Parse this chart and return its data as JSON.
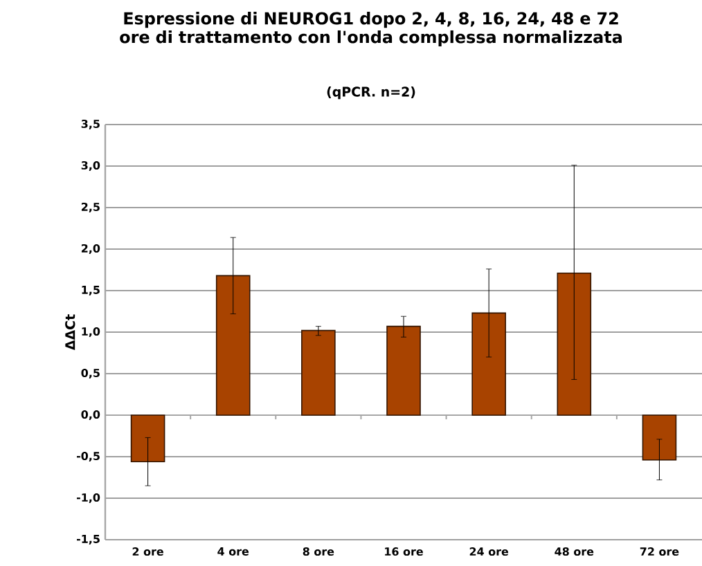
{
  "chart_data": {
    "type": "bar",
    "title": "Espressione di NEUROG1 dopo 2, 4, 8, 16, 24, 48 e 72 ore di trattamento con l'onda complessa normalizzata",
    "subtitle": "(qPCR. n=2)",
    "ylabel": "ΔΔCt",
    "categories": [
      "2 ore",
      "4 ore",
      "8 ore",
      "16 ore",
      "24 ore",
      "48 ore",
      "72 ore"
    ],
    "values": [
      -0.56,
      1.68,
      1.02,
      1.07,
      1.23,
      1.71,
      -0.54
    ],
    "errors": [
      [
        -0.85,
        -0.27
      ],
      [
        1.22,
        2.14
      ],
      [
        0.96,
        1.07
      ],
      [
        0.94,
        1.19
      ],
      [
        0.7,
        1.76
      ],
      [
        0.43,
        3.01
      ],
      [
        -0.78,
        -0.29
      ]
    ],
    "color": "#a84300",
    "ylim": [
      -1.5,
      3.5
    ],
    "yticks": [
      {
        "value": -1.5,
        "label": "-1,5"
      },
      {
        "value": -1.0,
        "label": "-1,0"
      },
      {
        "value": -0.5,
        "label": "-0,5"
      },
      {
        "value": 0.0,
        "label": "0,0"
      },
      {
        "value": 0.5,
        "label": "0,5"
      },
      {
        "value": 1.0,
        "label": "1,0"
      },
      {
        "value": 1.5,
        "label": "1,5"
      },
      {
        "value": 2.0,
        "label": "2,0"
      },
      {
        "value": 2.5,
        "label": "2,5"
      },
      {
        "value": 3.0,
        "label": "3,0"
      },
      {
        "value": 3.5,
        "label": "3,5"
      }
    ],
    "grid": "y"
  }
}
